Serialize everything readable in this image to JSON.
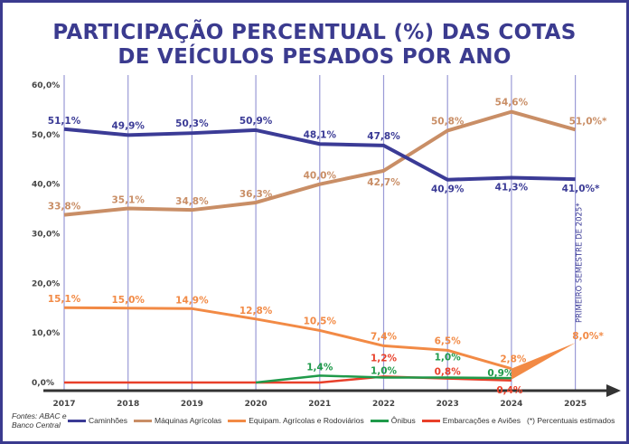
{
  "chart_data": {
    "type": "line",
    "title": "PARTICIPAÇÃO PERCENTUAL (%)  DAS COTAS DE VEÍCULOS PESADOS POR ANO",
    "title_lines": [
      "PARTICIPAÇÃO PERCENTUAL (%)  DAS COTAS",
      "DE VEÍCULOS PESADOS POR ANO"
    ],
    "categories": [
      "2017",
      "2018",
      "2019",
      "2020",
      "2021",
      "2022",
      "2023",
      "2024",
      "2025"
    ],
    "ylim": [
      0,
      60
    ],
    "yticks": [
      "0,0%",
      "10,0%",
      "20,0%",
      "30,0%",
      "40,0%",
      "50,0%",
      "60,0%"
    ],
    "grid": "vertical",
    "legend_placement": "bottom",
    "series": [
      {
        "name": "Caminhões",
        "color": "#3b3b96",
        "values": [
          51.1,
          49.9,
          50.3,
          50.9,
          48.1,
          47.8,
          40.9,
          41.3,
          41.0
        ],
        "labels": [
          "51,1%",
          "49,9%",
          "50,3%",
          "50,9%",
          "48,1%",
          "47,8%",
          "40,9%",
          "41,3%",
          "41,0%*"
        ]
      },
      {
        "name": "Máquinas Agrícolas",
        "color": "#c98e66",
        "values": [
          33.8,
          35.1,
          34.8,
          36.3,
          40.0,
          42.7,
          50.8,
          54.6,
          51.0
        ],
        "labels": [
          "33,8%",
          "35,1%",
          "34,8%",
          "36,3%",
          "40,0%",
          "42,7%",
          "50,8%",
          "54,6%",
          "51,0%*"
        ]
      },
      {
        "name": "Equipam. Agrícolas e Rodoviários",
        "color": "#f28a45",
        "values": [
          15.1,
          15.0,
          14.9,
          12.8,
          10.5,
          7.4,
          6.5,
          2.8,
          8.0
        ],
        "labels": [
          "15,1%",
          "15,0%",
          "14,9%",
          "12,8%",
          "10,5%",
          "7,4%",
          "6,5%",
          "2,8%",
          "8,0%*"
        ]
      },
      {
        "name": "Ônibus",
        "color": "#1f9a4a",
        "values": [
          null,
          null,
          null,
          0,
          1.4,
          1.0,
          1.0,
          0.9,
          null
        ],
        "labels": [
          null,
          null,
          null,
          null,
          "1,4%",
          "1,0%",
          "1,0%",
          "0,9%",
          null
        ]
      },
      {
        "name": "Embarcações e Aviões",
        "color": "#e8402a",
        "values": [
          0,
          0,
          0,
          0,
          0,
          1.2,
          0.8,
          0.4,
          null
        ],
        "labels": [
          null,
          null,
          null,
          null,
          null,
          "1,2%",
          "0,8%",
          "0,4%",
          null
        ]
      }
    ],
    "annotation": "PRIMEIRO SEMESTRE DE 2025*",
    "footnote": "(*) Percentuais estimados"
  },
  "source": "Fontes: ABAC e Banco Central"
}
